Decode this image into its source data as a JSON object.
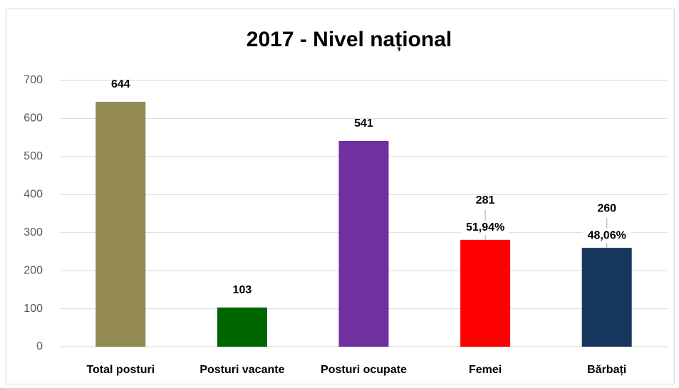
{
  "chart_data": {
    "type": "bar",
    "title": "2017 - Nivel național",
    "categories": [
      "Total posturi",
      "Posturi vacante",
      "Posturi ocupate",
      "Femei",
      "Bărbați"
    ],
    "values": [
      644,
      103,
      541,
      281,
      260
    ],
    "colors": [
      "#948a54",
      "#006600",
      "#7030a0",
      "#ff0000",
      "#17375e"
    ],
    "percent_labels": [
      null,
      null,
      null,
      "51,94%",
      "48,06%"
    ],
    "ylim": [
      0,
      700
    ],
    "yticks": [
      0,
      100,
      200,
      300,
      400,
      500,
      600,
      700
    ],
    "grid": true
  }
}
